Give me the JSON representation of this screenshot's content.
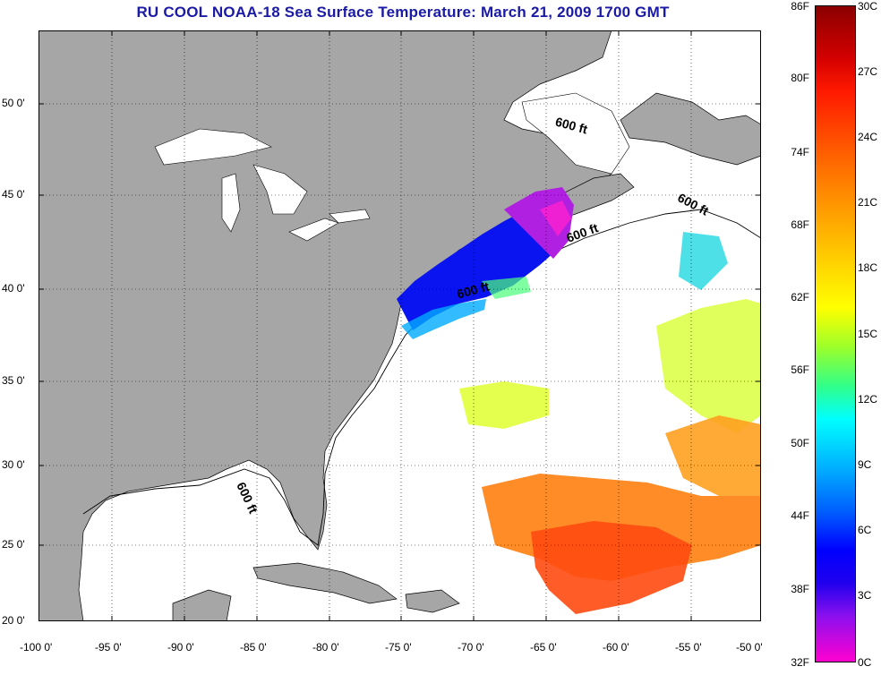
{
  "title": "RU COOL  NOAA-18  Sea Surface Temperature:  March 21, 2009 1700 GMT",
  "colors": {
    "land": "#a6a6a6",
    "ocean": "#ffffff",
    "title_text": "#1a1aa6"
  },
  "lat_ticks": [
    "50 0'",
    "45 0'",
    "40 0'",
    "35 0'",
    "30 0'",
    "25 0'",
    "20 0'"
  ],
  "lon_ticks": [
    "-100 0'",
    "-95 0'",
    "-90 0'",
    "-85 0'",
    "-80 0'",
    "-75 0'",
    "-70 0'",
    "-65 0'",
    "-60 0'",
    "-55 0'",
    "-50 0'"
  ],
  "contour_label": "600 ft",
  "colorbar": {
    "fahrenheit": [
      "86F",
      "80F",
      "74F",
      "68F",
      "62F",
      "56F",
      "50F",
      "44F",
      "38F",
      "32F"
    ],
    "celsius": [
      "30C",
      "27C",
      "24C",
      "21C",
      "18C",
      "15C",
      "12C",
      "9C",
      "6C",
      "3C",
      "0C"
    ]
  }
}
